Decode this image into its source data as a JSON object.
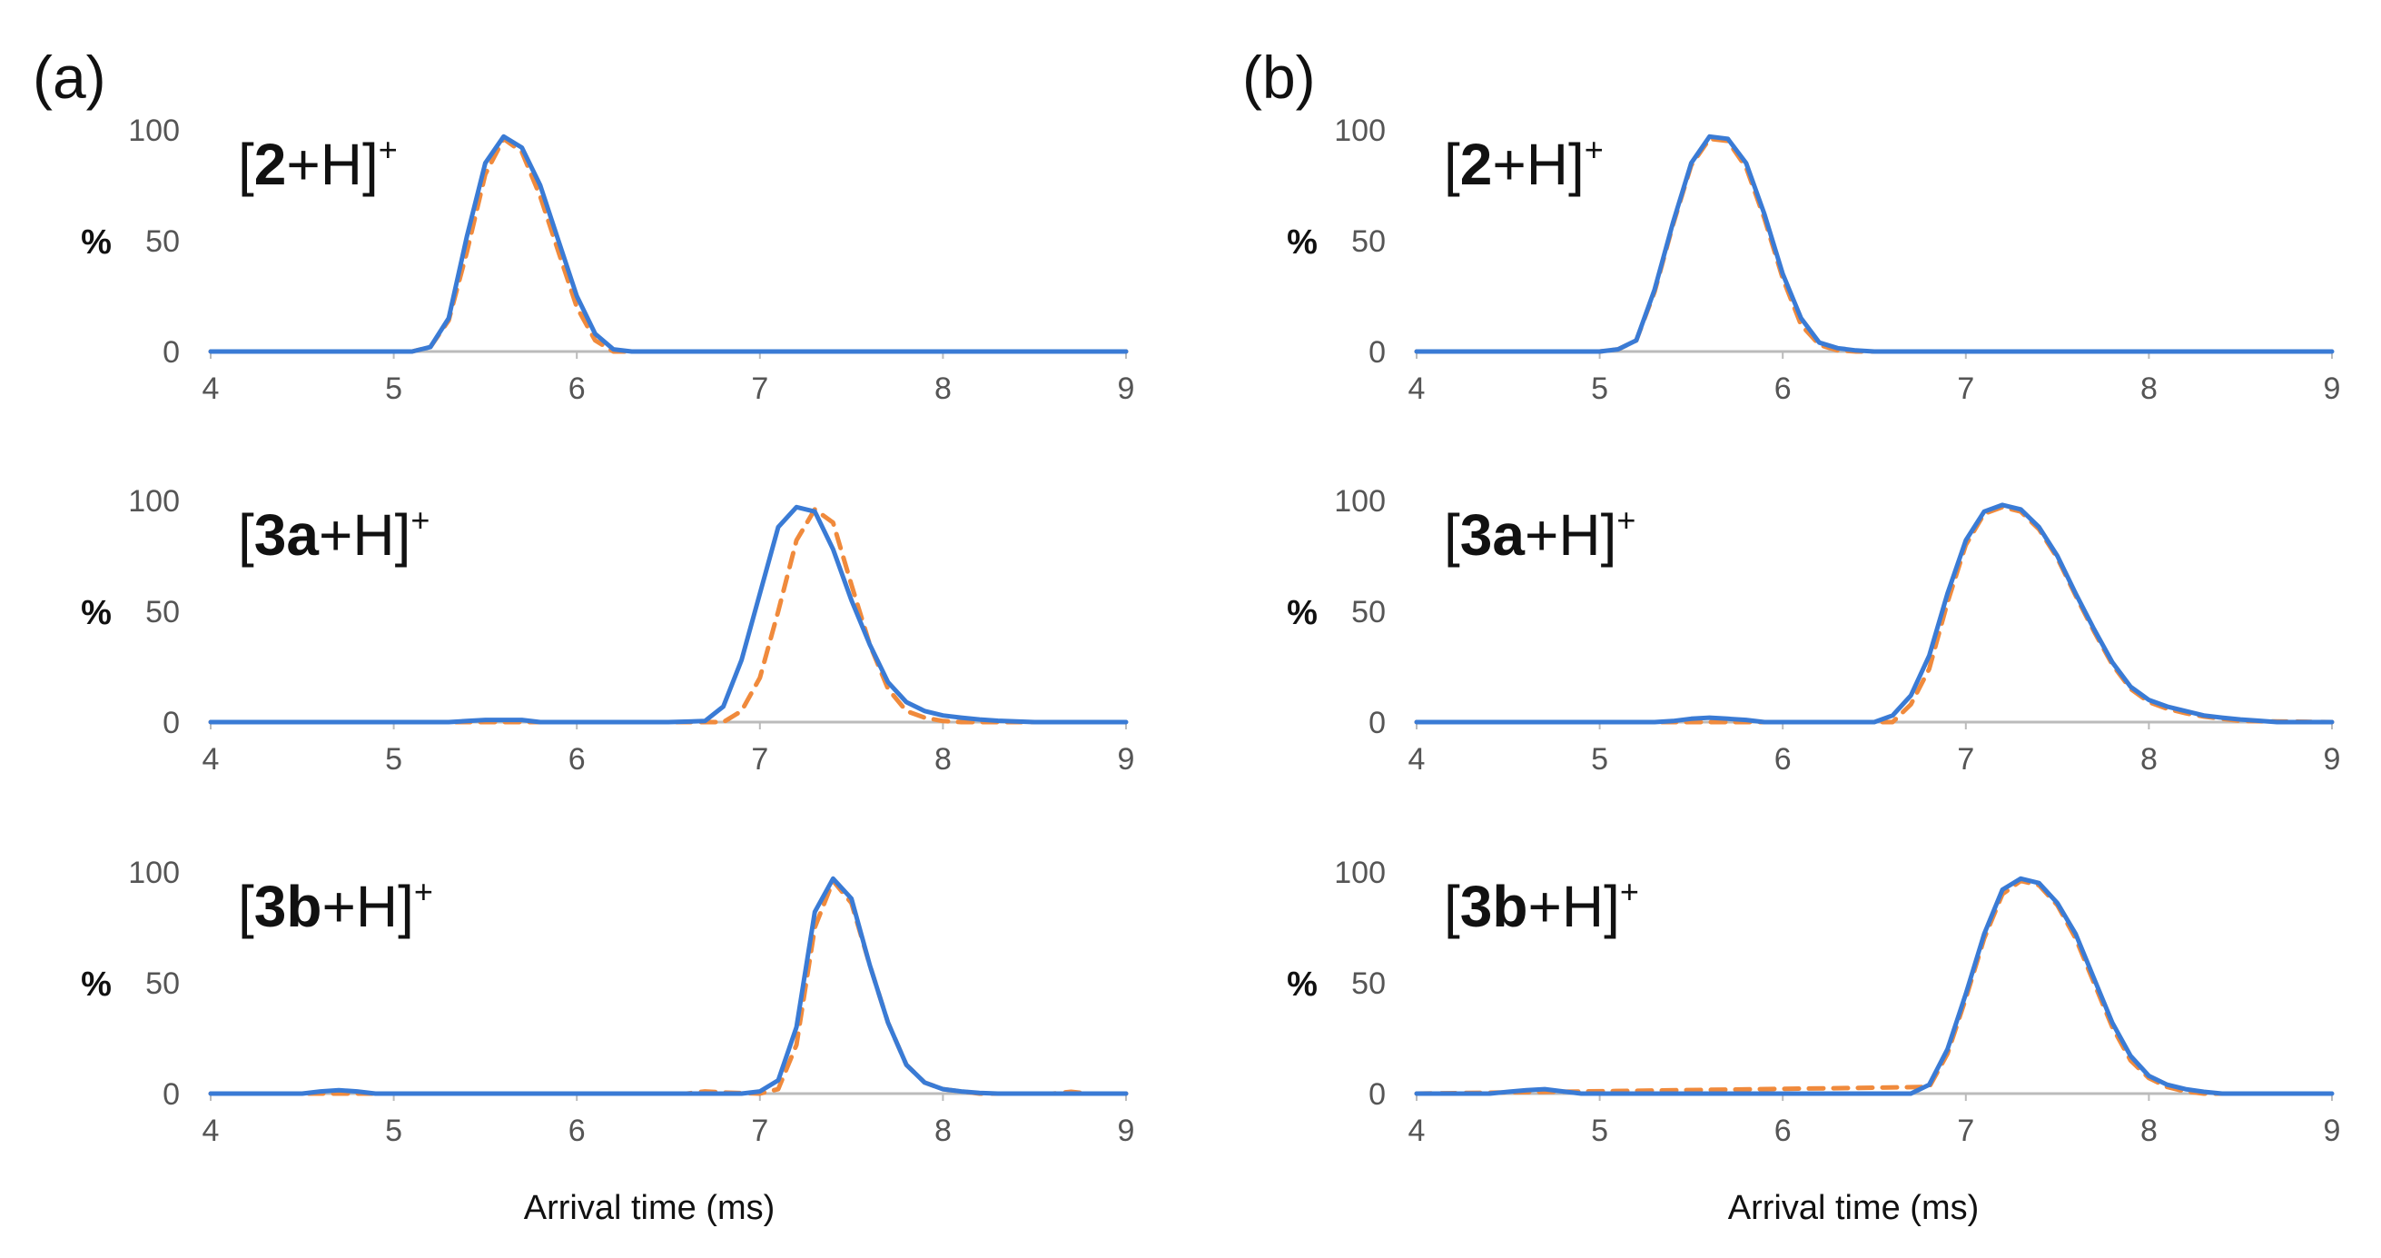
{
  "panels": [
    {
      "letter": "(a)",
      "xlabel": "Arrival time (ms)",
      "charts": [
        {
          "species_prefix": "[",
          "species_bold": "2",
          "species_suffix": "+H]",
          "species_sup": "+"
        },
        {
          "species_prefix": "[",
          "species_bold": "3a",
          "species_suffix": "+H]",
          "species_sup": "+"
        },
        {
          "species_prefix": "[",
          "species_bold": "3b",
          "species_suffix": "+H]",
          "species_sup": "+"
        }
      ]
    },
    {
      "letter": "(b)",
      "xlabel": "Arrival time (ms)",
      "charts": [
        {
          "species_prefix": "[",
          "species_bold": "2",
          "species_suffix": "+H]",
          "species_sup": "+"
        },
        {
          "species_prefix": "[",
          "species_bold": "3a",
          "species_suffix": "+H]",
          "species_sup": "+"
        },
        {
          "species_prefix": "[",
          "species_bold": "3b",
          "species_suffix": "+H]",
          "species_sup": "+"
        }
      ]
    }
  ],
  "colors": {
    "measured": "#3a7bd5",
    "predicted": "#f08a3c",
    "axis": "#bbbbbb"
  },
  "chart_data": [
    {
      "type": "line",
      "panel": "(a)",
      "title": "[2+H]+",
      "xlabel": "",
      "ylabel": "%",
      "xlim": [
        4,
        9
      ],
      "ylim": [
        0,
        100
      ],
      "xticks": [
        "4",
        "5",
        "6",
        "7",
        "8",
        "9"
      ],
      "yticks": [
        "0",
        "50",
        "100"
      ],
      "series": [
        {
          "name": "measured",
          "style": "solid",
          "x": [
            4,
            5.0,
            5.1,
            5.2,
            5.3,
            5.4,
            5.5,
            5.6,
            5.7,
            5.8,
            5.9,
            6.0,
            6.1,
            6.2,
            6.3,
            9
          ],
          "y": [
            0,
            0,
            0,
            2,
            15,
            52,
            85,
            97,
            92,
            75,
            50,
            25,
            8,
            1,
            0,
            0
          ]
        },
        {
          "name": "predicted",
          "style": "dashed",
          "x": [
            4,
            5.1,
            5.2,
            5.3,
            5.4,
            5.5,
            5.6,
            5.7,
            5.8,
            5.9,
            6.0,
            6.1,
            6.2,
            6.3,
            9
          ],
          "y": [
            0,
            0,
            2,
            14,
            45,
            80,
            96,
            90,
            70,
            45,
            20,
            5,
            0,
            0,
            0
          ]
        }
      ]
    },
    {
      "type": "line",
      "panel": "(a)",
      "title": "[3a+H]+",
      "xlabel": "",
      "ylabel": "%",
      "xlim": [
        4,
        9
      ],
      "ylim": [
        0,
        100
      ],
      "xticks": [
        "4",
        "5",
        "6",
        "7",
        "8",
        "9"
      ],
      "yticks": [
        "0",
        "50",
        "100"
      ],
      "series": [
        {
          "name": "measured",
          "style": "solid",
          "x": [
            4,
            5.3,
            5.4,
            5.5,
            5.6,
            5.7,
            5.8,
            6.5,
            6.7,
            6.8,
            6.9,
            7.0,
            7.1,
            7.2,
            7.3,
            7.4,
            7.5,
            7.6,
            7.7,
            7.8,
            7.9,
            8.0,
            8.1,
            8.2,
            8.3,
            8.4,
            8.5,
            9
          ],
          "y": [
            0,
            0,
            0.5,
            1,
            1,
            1,
            0,
            0,
            0.5,
            7,
            28,
            58,
            88,
            97,
            95,
            78,
            55,
            35,
            18,
            9,
            5,
            3,
            2,
            1.2,
            0.6,
            0.3,
            0,
            0
          ]
        },
        {
          "name": "predicted",
          "style": "dashed",
          "x": [
            4,
            6.8,
            6.9,
            7.0,
            7.1,
            7.2,
            7.3,
            7.4,
            7.5,
            7.6,
            7.7,
            7.8,
            7.9,
            8.0,
            8.1,
            8.2,
            9
          ],
          "y": [
            0,
            0,
            5,
            20,
            50,
            82,
            96,
            90,
            62,
            35,
            15,
            5,
            2,
            0.5,
            0,
            0,
            0
          ]
        }
      ]
    },
    {
      "type": "line",
      "panel": "(a)",
      "title": "[3b+H]+",
      "xlabel": "Arrival time (ms)",
      "ylabel": "%",
      "xlim": [
        4,
        9
      ],
      "ylim": [
        0,
        100
      ],
      "xticks": [
        "4",
        "5",
        "6",
        "7",
        "8",
        "9"
      ],
      "yticks": [
        "0",
        "50",
        "100"
      ],
      "series": [
        {
          "name": "measured",
          "style": "solid",
          "x": [
            4,
            4.5,
            4.6,
            4.7,
            4.8,
            4.9,
            6.9,
            7.0,
            7.1,
            7.2,
            7.3,
            7.4,
            7.5,
            7.6,
            7.7,
            7.8,
            7.9,
            8.0,
            8.1,
            8.2,
            8.3,
            9
          ],
          "y": [
            0,
            0,
            1,
            1.5,
            1,
            0,
            0,
            1,
            6,
            30,
            82,
            97,
            88,
            58,
            32,
            13,
            5,
            2,
            1,
            0.3,
            0,
            0
          ]
        },
        {
          "name": "predicted",
          "style": "dashed",
          "x": [
            4,
            6.6,
            6.7,
            6.8,
            7.0,
            7.1,
            7.2,
            7.3,
            7.4,
            7.5,
            7.6,
            7.7,
            7.8,
            7.9,
            8.0,
            8.1,
            8.2,
            8.6,
            8.7,
            8.8,
            9
          ],
          "y": [
            0,
            0,
            1,
            0.5,
            0,
            2,
            22,
            75,
            96,
            86,
            58,
            32,
            13,
            5,
            2,
            1,
            0,
            0,
            0.8,
            0,
            0
          ]
        }
      ]
    },
    {
      "type": "line",
      "panel": "(b)",
      "title": "[2+H]+",
      "xlabel": "",
      "ylabel": "%",
      "xlim": [
        4,
        9
      ],
      "ylim": [
        0,
        100
      ],
      "xticks": [
        "4",
        "5",
        "6",
        "7",
        "8",
        "9"
      ],
      "yticks": [
        "0",
        "50",
        "100"
      ],
      "series": [
        {
          "name": "measured",
          "style": "solid",
          "x": [
            4,
            5.0,
            5.1,
            5.2,
            5.3,
            5.4,
            5.5,
            5.6,
            5.7,
            5.8,
            5.9,
            6.0,
            6.1,
            6.2,
            6.3,
            6.4,
            6.5,
            9
          ],
          "y": [
            0,
            0,
            1,
            5,
            28,
            58,
            85,
            97,
            96,
            85,
            62,
            35,
            15,
            4,
            1.5,
            0.5,
            0,
            0
          ]
        },
        {
          "name": "predicted",
          "style": "dashed",
          "x": [
            4,
            5.0,
            5.1,
            5.2,
            5.3,
            5.4,
            5.5,
            5.6,
            5.7,
            5.8,
            5.9,
            6.0,
            6.1,
            6.2,
            6.3,
            6.4,
            9
          ],
          "y": [
            0,
            0,
            1,
            5,
            27,
            57,
            84,
            96,
            95,
            83,
            60,
            33,
            12,
            3,
            0.5,
            0,
            0
          ]
        }
      ]
    },
    {
      "type": "line",
      "panel": "(b)",
      "title": "[3a+H]+",
      "xlabel": "",
      "ylabel": "%",
      "xlim": [
        4,
        9
      ],
      "ylim": [
        0,
        100
      ],
      "xticks": [
        "4",
        "5",
        "6",
        "7",
        "8",
        "9"
      ],
      "yticks": [
        "0",
        "50",
        "100"
      ],
      "series": [
        {
          "name": "measured",
          "style": "solid",
          "x": [
            4,
            5.3,
            5.4,
            5.5,
            5.6,
            5.7,
            5.8,
            5.9,
            6.5,
            6.6,
            6.7,
            6.8,
            6.9,
            7.0,
            7.1,
            7.2,
            7.3,
            7.4,
            7.5,
            7.6,
            7.7,
            7.8,
            7.9,
            8.0,
            8.1,
            8.2,
            8.3,
            8.4,
            8.5,
            8.6,
            8.7,
            9
          ],
          "y": [
            0,
            0,
            0.5,
            1.5,
            2,
            1.5,
            1,
            0,
            0,
            3,
            12,
            30,
            58,
            82,
            95,
            98,
            96,
            88,
            75,
            58,
            42,
            27,
            16,
            10,
            7,
            5,
            3,
            2,
            1.2,
            0.6,
            0,
            0
          ]
        },
        {
          "name": "predicted",
          "style": "dashed",
          "x": [
            4,
            6.6,
            6.7,
            6.8,
            6.9,
            7.0,
            7.1,
            7.2,
            7.3,
            7.4,
            7.5,
            7.6,
            7.7,
            7.8,
            7.9,
            8.0,
            8.1,
            8.2,
            8.3,
            8.4,
            8.5,
            9
          ],
          "y": [
            0,
            0,
            8,
            24,
            54,
            80,
            94,
            97,
            95,
            87,
            74,
            57,
            41,
            26,
            15,
            9,
            6,
            4,
            2.5,
            1.5,
            0.5,
            0
          ]
        }
      ]
    },
    {
      "type": "line",
      "panel": "(b)",
      "title": "[3b+H]+",
      "xlabel": "Arrival time (ms)",
      "ylabel": "%",
      "xlim": [
        4,
        9
      ],
      "ylim": [
        0,
        100
      ],
      "xticks": [
        "4",
        "5",
        "6",
        "7",
        "8",
        "9"
      ],
      "yticks": [
        "0",
        "50",
        "100"
      ],
      "series": [
        {
          "name": "measured",
          "style": "solid",
          "x": [
            4,
            4.4,
            4.5,
            4.6,
            4.7,
            4.8,
            4.9,
            5.9,
            6.7,
            6.8,
            6.9,
            7.0,
            7.1,
            7.2,
            7.3,
            7.4,
            7.5,
            7.6,
            7.7,
            7.8,
            7.9,
            8.0,
            8.1,
            8.2,
            8.3,
            8.4,
            9
          ],
          "y": [
            0,
            0,
            0.8,
            1.5,
            2,
            1,
            0,
            0,
            0,
            4,
            20,
            45,
            72,
            92,
            97,
            95,
            86,
            72,
            52,
            32,
            17,
            8,
            4,
            2,
            0.8,
            0,
            0
          ]
        },
        {
          "name": "predicted",
          "style": "dashed",
          "x": [
            4,
            6.8,
            6.9,
            7.0,
            7.1,
            7.2,
            7.3,
            7.4,
            7.5,
            7.6,
            7.7,
            7.8,
            7.9,
            8.0,
            8.1,
            8.2,
            8.3,
            9
          ],
          "y": [
            0,
            3,
            18,
            43,
            70,
            90,
            96,
            94,
            85,
            70,
            50,
            30,
            15,
            7,
            3,
            1,
            0,
            0
          ]
        }
      ]
    }
  ]
}
